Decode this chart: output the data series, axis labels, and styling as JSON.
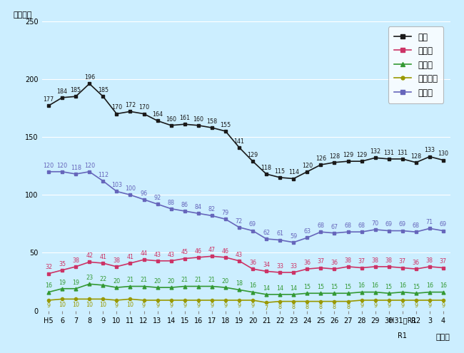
{
  "x_labels": [
    "H5",
    "6",
    "7",
    "8",
    "9",
    "10",
    "11",
    "12",
    "13",
    "14",
    "15",
    "16",
    "17",
    "18",
    "19",
    "20",
    "21",
    "22",
    "23",
    "24",
    "25",
    "26",
    "27",
    "28",
    "29",
    "30",
    "H31・R1",
    "R2",
    "3",
    "4"
  ],
  "x_sub_label": "R1",
  "zenkok": [
    177,
    184,
    185,
    196,
    185,
    170,
    172,
    170,
    164,
    160,
    161,
    160,
    158,
    155,
    141,
    129,
    118,
    115,
    114,
    120,
    126,
    128,
    129,
    129,
    132,
    131,
    131,
    128,
    133,
    130
  ],
  "tokyo": [
    32,
    35,
    38,
    42,
    41,
    38,
    41,
    44,
    43,
    43,
    45,
    46,
    47,
    46,
    43,
    36,
    34,
    33,
    33,
    36,
    37,
    36,
    38,
    37,
    38,
    38,
    37,
    36,
    38,
    37
  ],
  "osaka": [
    16,
    19,
    19,
    23,
    22,
    20,
    21,
    21,
    20,
    20,
    21,
    21,
    21,
    20,
    18,
    16,
    14,
    14,
    14,
    15,
    15,
    15,
    15,
    16,
    16,
    15,
    16,
    15,
    16,
    16
  ],
  "nagoya": [
    9,
    10,
    10,
    10,
    10,
    9,
    10,
    9,
    9,
    9,
    9,
    9,
    9,
    9,
    9,
    9,
    7,
    8,
    8,
    8,
    8,
    8,
    8,
    9,
    9,
    9,
    9,
    9,
    9,
    9
  ],
  "chiho": [
    120,
    120,
    118,
    120,
    112,
    103,
    100,
    96,
    92,
    88,
    86,
    84,
    82,
    79,
    72,
    69,
    62,
    61,
    59,
    63,
    68,
    67,
    68,
    68,
    70,
    69,
    69,
    68,
    71,
    69
  ],
  "zenkok_color": "#1a1a1a",
  "tokyo_color": "#cc3366",
  "osaka_color": "#339933",
  "nagoya_color": "#999900",
  "chiho_color": "#6666bb",
  "bg_color": "#cceeff",
  "legend_labels": [
    "全国",
    "東京圈",
    "大阪圈",
    "名古屋圈",
    "地方圈"
  ],
  "ylabel": "（万件）",
  "xlabel": "（年）",
  "ylim": [
    0,
    250
  ],
  "yticks": [
    0,
    50,
    100,
    150,
    200,
    250
  ]
}
